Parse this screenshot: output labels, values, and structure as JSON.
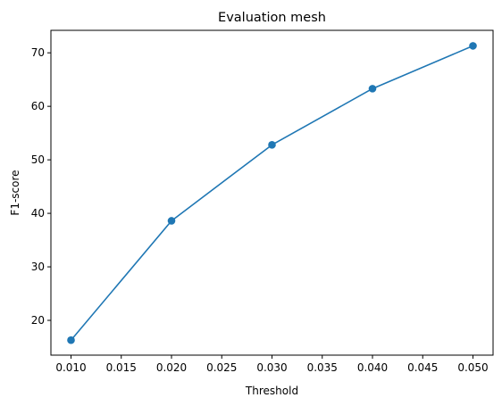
{
  "chart_data": {
    "type": "line",
    "title": "Evaluation mesh",
    "xlabel": "Threshold",
    "ylabel": "F1-score",
    "x": [
      0.01,
      0.02,
      0.03,
      0.04,
      0.05
    ],
    "series": [
      {
        "values": [
          16.3,
          38.6,
          52.8,
          63.3,
          71.3
        ],
        "color": "#1f77b4",
        "marker": "circle"
      }
    ],
    "xticks": [
      "0.010",
      "0.015",
      "0.020",
      "0.025",
      "0.030",
      "0.035",
      "0.040",
      "0.045",
      "0.050"
    ],
    "yticks": [
      "20",
      "30",
      "40",
      "50",
      "60",
      "70"
    ],
    "xlim": [
      0.008,
      0.052
    ],
    "ylim": [
      13.5,
      74.2
    ],
    "grid": false,
    "legend": false
  }
}
